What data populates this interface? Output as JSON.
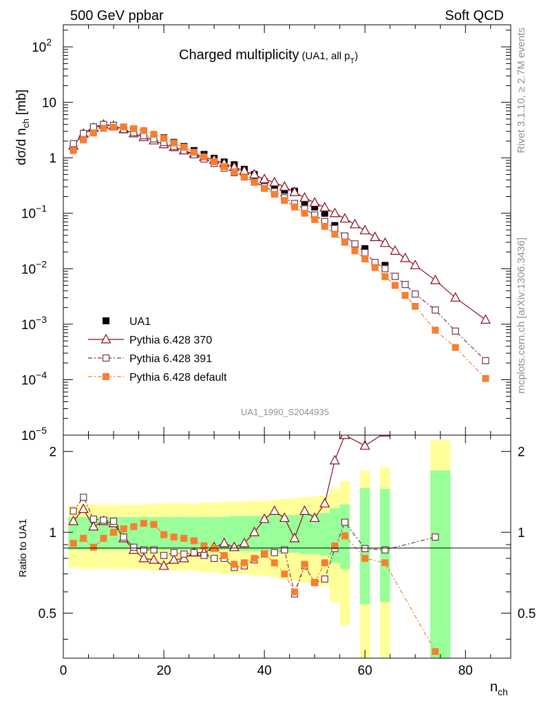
{
  "header": {
    "left": "500 GeV ppbar",
    "right": "Soft QCD"
  },
  "side": {
    "rivet": "Rivet 3.1.10, ≥ 2.7M events",
    "mcplots": "mcplots.cern.ch [arXiv:1306.3436]"
  },
  "chart_data": {
    "type": "scatter",
    "title": {
      "main": "Charged multiplicity",
      "sub_prefix": "(UA1, all p",
      "sub_sub": "T",
      "sub_suffix": ")"
    },
    "analysis_id": "UA1_1990_S2044935",
    "ylabel": {
      "prefix": "dσ/d n",
      "sub": "ch",
      "suffix": " [mb]"
    },
    "xlabel": {
      "main": "n",
      "sub": "ch"
    },
    "ratio_ylabel": "Ratio to UA1",
    "xlim": [
      0,
      89
    ],
    "ylim": [
      1e-05,
      250
    ],
    "ratio_ylim": [
      0.34,
      2.3
    ],
    "x_ticks": [
      "0",
      "20",
      "40",
      "60",
      "80"
    ],
    "y_ticks": [
      {
        "base": "10",
        "exp": "2",
        "value": 100
      },
      {
        "base": "10",
        "exp": "",
        "value": 10
      },
      {
        "base": "1",
        "exp": "",
        "value": 1
      },
      {
        "base": "10",
        "exp": "−1",
        "value": 0.1
      },
      {
        "base": "10",
        "exp": "−2",
        "value": 0.01
      },
      {
        "base": "10",
        "exp": "−3",
        "value": 0.001
      },
      {
        "base": "10",
        "exp": "−4",
        "value": 0.0001
      },
      {
        "base": "10",
        "exp": "−5",
        "value": 1e-05
      }
    ],
    "ratio_ticks": [
      "0.5",
      "1",
      "2"
    ],
    "legend": [
      "UA1",
      "Pythia 6.428 370",
      "Pythia 6.428 391",
      "Pythia 6.428 default"
    ],
    "series": [
      {
        "name": "UA1",
        "color": "#000000",
        "x": [
          2,
          4,
          6,
          8,
          10,
          12,
          14,
          16,
          18,
          20,
          22,
          24,
          26,
          28,
          30,
          32,
          34,
          36,
          38,
          40,
          42,
          44,
          46,
          48,
          50,
          52,
          54,
          56,
          60,
          64,
          74
        ],
        "y": [
          1.5,
          2.3,
          3.3,
          3.7,
          3.6,
          3.5,
          3.3,
          3.0,
          2.6,
          2.3,
          1.9,
          1.6,
          1.35,
          1.15,
          0.98,
          0.84,
          0.75,
          0.62,
          0.5,
          0.37,
          0.3,
          0.26,
          0.25,
          0.16,
          0.13,
          0.1,
          0.06,
          0.036,
          0.023,
          0.0115,
          0.0018
        ]
      },
      {
        "name": "Pythia 6.428 370",
        "color": "#8b0a1e",
        "x": [
          2,
          4,
          6,
          8,
          10,
          12,
          14,
          16,
          18,
          20,
          22,
          24,
          26,
          28,
          30,
          32,
          34,
          36,
          38,
          40,
          42,
          44,
          46,
          48,
          50,
          52,
          54,
          56,
          58,
          60,
          62,
          64,
          66,
          68,
          70,
          74,
          78,
          84
        ],
        "y": [
          1.65,
          2.7,
          3.45,
          3.95,
          3.75,
          3.25,
          2.75,
          2.35,
          2.05,
          1.75,
          1.55,
          1.35,
          1.18,
          1.03,
          0.92,
          0.79,
          0.68,
          0.58,
          0.5,
          0.41,
          0.36,
          0.3,
          0.24,
          0.19,
          0.155,
          0.127,
          0.1,
          0.08,
          0.063,
          0.049,
          0.037,
          0.029,
          0.021,
          0.0155,
          0.0115,
          0.0062,
          0.003,
          0.0012
        ]
      },
      {
        "name": "Pythia 6.428 391",
        "color": "#6e3550",
        "x": [
          2,
          4,
          6,
          8,
          10,
          12,
          14,
          16,
          18,
          20,
          22,
          24,
          26,
          28,
          30,
          32,
          34,
          36,
          38,
          40,
          42,
          44,
          46,
          48,
          50,
          52,
          54,
          56,
          58,
          60,
          62,
          64,
          66,
          68,
          70,
          74,
          78,
          84
        ],
        "y": [
          1.8,
          2.75,
          3.6,
          4.0,
          3.85,
          3.25,
          2.85,
          2.5,
          2.2,
          1.88,
          1.6,
          1.34,
          1.13,
          0.95,
          0.79,
          0.65,
          0.54,
          0.45,
          0.37,
          0.3,
          0.245,
          0.19,
          0.15,
          0.12,
          0.093,
          0.071,
          0.053,
          0.039,
          0.028,
          0.0195,
          0.013,
          0.01,
          0.0073,
          0.0052,
          0.0035,
          0.0018,
          0.00075,
          0.00022
        ]
      },
      {
        "name": "Pythia 6.428 default",
        "color": "#f77f2f",
        "x": [
          2,
          4,
          6,
          8,
          10,
          12,
          14,
          16,
          18,
          20,
          22,
          24,
          26,
          28,
          30,
          32,
          34,
          36,
          38,
          40,
          42,
          44,
          46,
          48,
          50,
          52,
          54,
          56,
          58,
          60,
          62,
          64,
          66,
          68,
          70,
          74,
          78,
          84
        ],
        "y": [
          1.35,
          2.1,
          2.8,
          3.4,
          3.55,
          3.6,
          3.35,
          3.1,
          2.65,
          2.25,
          1.85,
          1.55,
          1.26,
          1.03,
          0.85,
          0.69,
          0.56,
          0.45,
          0.36,
          0.28,
          0.22,
          0.17,
          0.13,
          0.1,
          0.077,
          0.058,
          0.042,
          0.03,
          0.021,
          0.015,
          0.0105,
          0.0072,
          0.005,
          0.0033,
          0.0021,
          0.00078,
          0.00038,
          0.000105
        ]
      }
    ],
    "ratio_series": [
      {
        "name": "Pythia 6.428 370",
        "x": [
          2,
          4,
          6,
          8,
          10,
          12,
          14,
          16,
          18,
          20,
          22,
          24,
          26,
          28,
          30,
          32,
          34,
          36,
          38,
          40,
          42,
          44,
          46,
          48,
          50,
          52,
          54,
          56,
          60,
          64
        ],
        "y": [
          1.1,
          1.22,
          1.05,
          1.1,
          1.08,
          0.95,
          0.86,
          0.8,
          0.79,
          0.75,
          0.79,
          0.8,
          0.84,
          0.84,
          0.88,
          0.91,
          0.88,
          0.91,
          1.0,
          1.12,
          1.2,
          1.13,
          0.95,
          1.2,
          1.13,
          1.28,
          1.85,
          2.3,
          2.1,
          2.35
        ]
      },
      {
        "name": "Pythia 6.428 391",
        "x": [
          2,
          4,
          6,
          8,
          10,
          12,
          14,
          16,
          18,
          20,
          22,
          24,
          26,
          28,
          30,
          32,
          34,
          36,
          38,
          40,
          42,
          44,
          46,
          48,
          50,
          52,
          54,
          56,
          60,
          64,
          74
        ],
        "y": [
          1.2,
          1.35,
          1.12,
          1.11,
          1.1,
          0.96,
          0.88,
          0.86,
          0.86,
          0.82,
          0.84,
          0.83,
          0.84,
          0.82,
          0.8,
          0.8,
          0.74,
          0.75,
          0.79,
          0.83,
          0.84,
          0.86,
          0.59,
          0.75,
          0.65,
          0.67,
          0.87,
          1.09,
          0.87,
          0.86,
          0.96
        ]
      },
      {
        "name": "Pythia 6.428 default",
        "x": [
          2,
          4,
          6,
          8,
          10,
          12,
          14,
          16,
          18,
          20,
          22,
          24,
          26,
          28,
          30,
          32,
          34,
          36,
          38,
          40,
          42,
          44,
          46,
          48,
          50,
          52,
          54,
          56,
          60,
          64,
          74
        ],
        "y": [
          0.91,
          0.95,
          0.88,
          0.95,
          1.0,
          1.03,
          1.05,
          1.08,
          1.07,
          0.98,
          0.96,
          0.95,
          0.93,
          0.89,
          0.87,
          0.82,
          0.76,
          0.77,
          0.8,
          0.83,
          0.77,
          0.7,
          0.6,
          0.76,
          0.65,
          0.77,
          0.89,
          0.97,
          0.8,
          0.77,
          0.36
        ]
      }
    ],
    "uncertainty_bands": {
      "x": [
        1,
        3,
        5,
        7,
        9,
        11,
        13,
        15,
        17,
        19,
        21,
        23,
        25,
        27,
        29,
        31,
        33,
        35,
        37,
        39,
        41,
        43,
        45,
        47,
        49,
        51,
        53,
        55,
        57,
        59,
        61,
        63,
        65,
        73,
        77
      ],
      "stat_half_width": [
        0.14,
        0.14,
        0.14,
        0.14,
        0.14,
        0.14,
        0.14,
        0.14,
        0.14,
        0.14,
        0.14,
        0.14,
        0.14,
        0.14,
        0.14,
        0.14,
        0.15,
        0.15,
        0.15,
        0.15,
        0.16,
        0.16,
        0.16,
        0.17,
        0.17,
        0.18,
        0.23,
        0.27,
        0.0,
        0.46,
        0.0,
        0.45,
        0.0,
        0.7
      ],
      "total_half_width": [
        0.26,
        0.27,
        0.27,
        0.27,
        0.27,
        0.27,
        0.27,
        0.27,
        0.28,
        0.28,
        0.28,
        0.28,
        0.28,
        0.29,
        0.29,
        0.3,
        0.3,
        0.3,
        0.31,
        0.31,
        0.32,
        0.33,
        0.34,
        0.35,
        0.36,
        0.37,
        0.45,
        0.55,
        0.0,
        0.7,
        0.0,
        0.75,
        0.0,
        1.2
      ]
    }
  }
}
